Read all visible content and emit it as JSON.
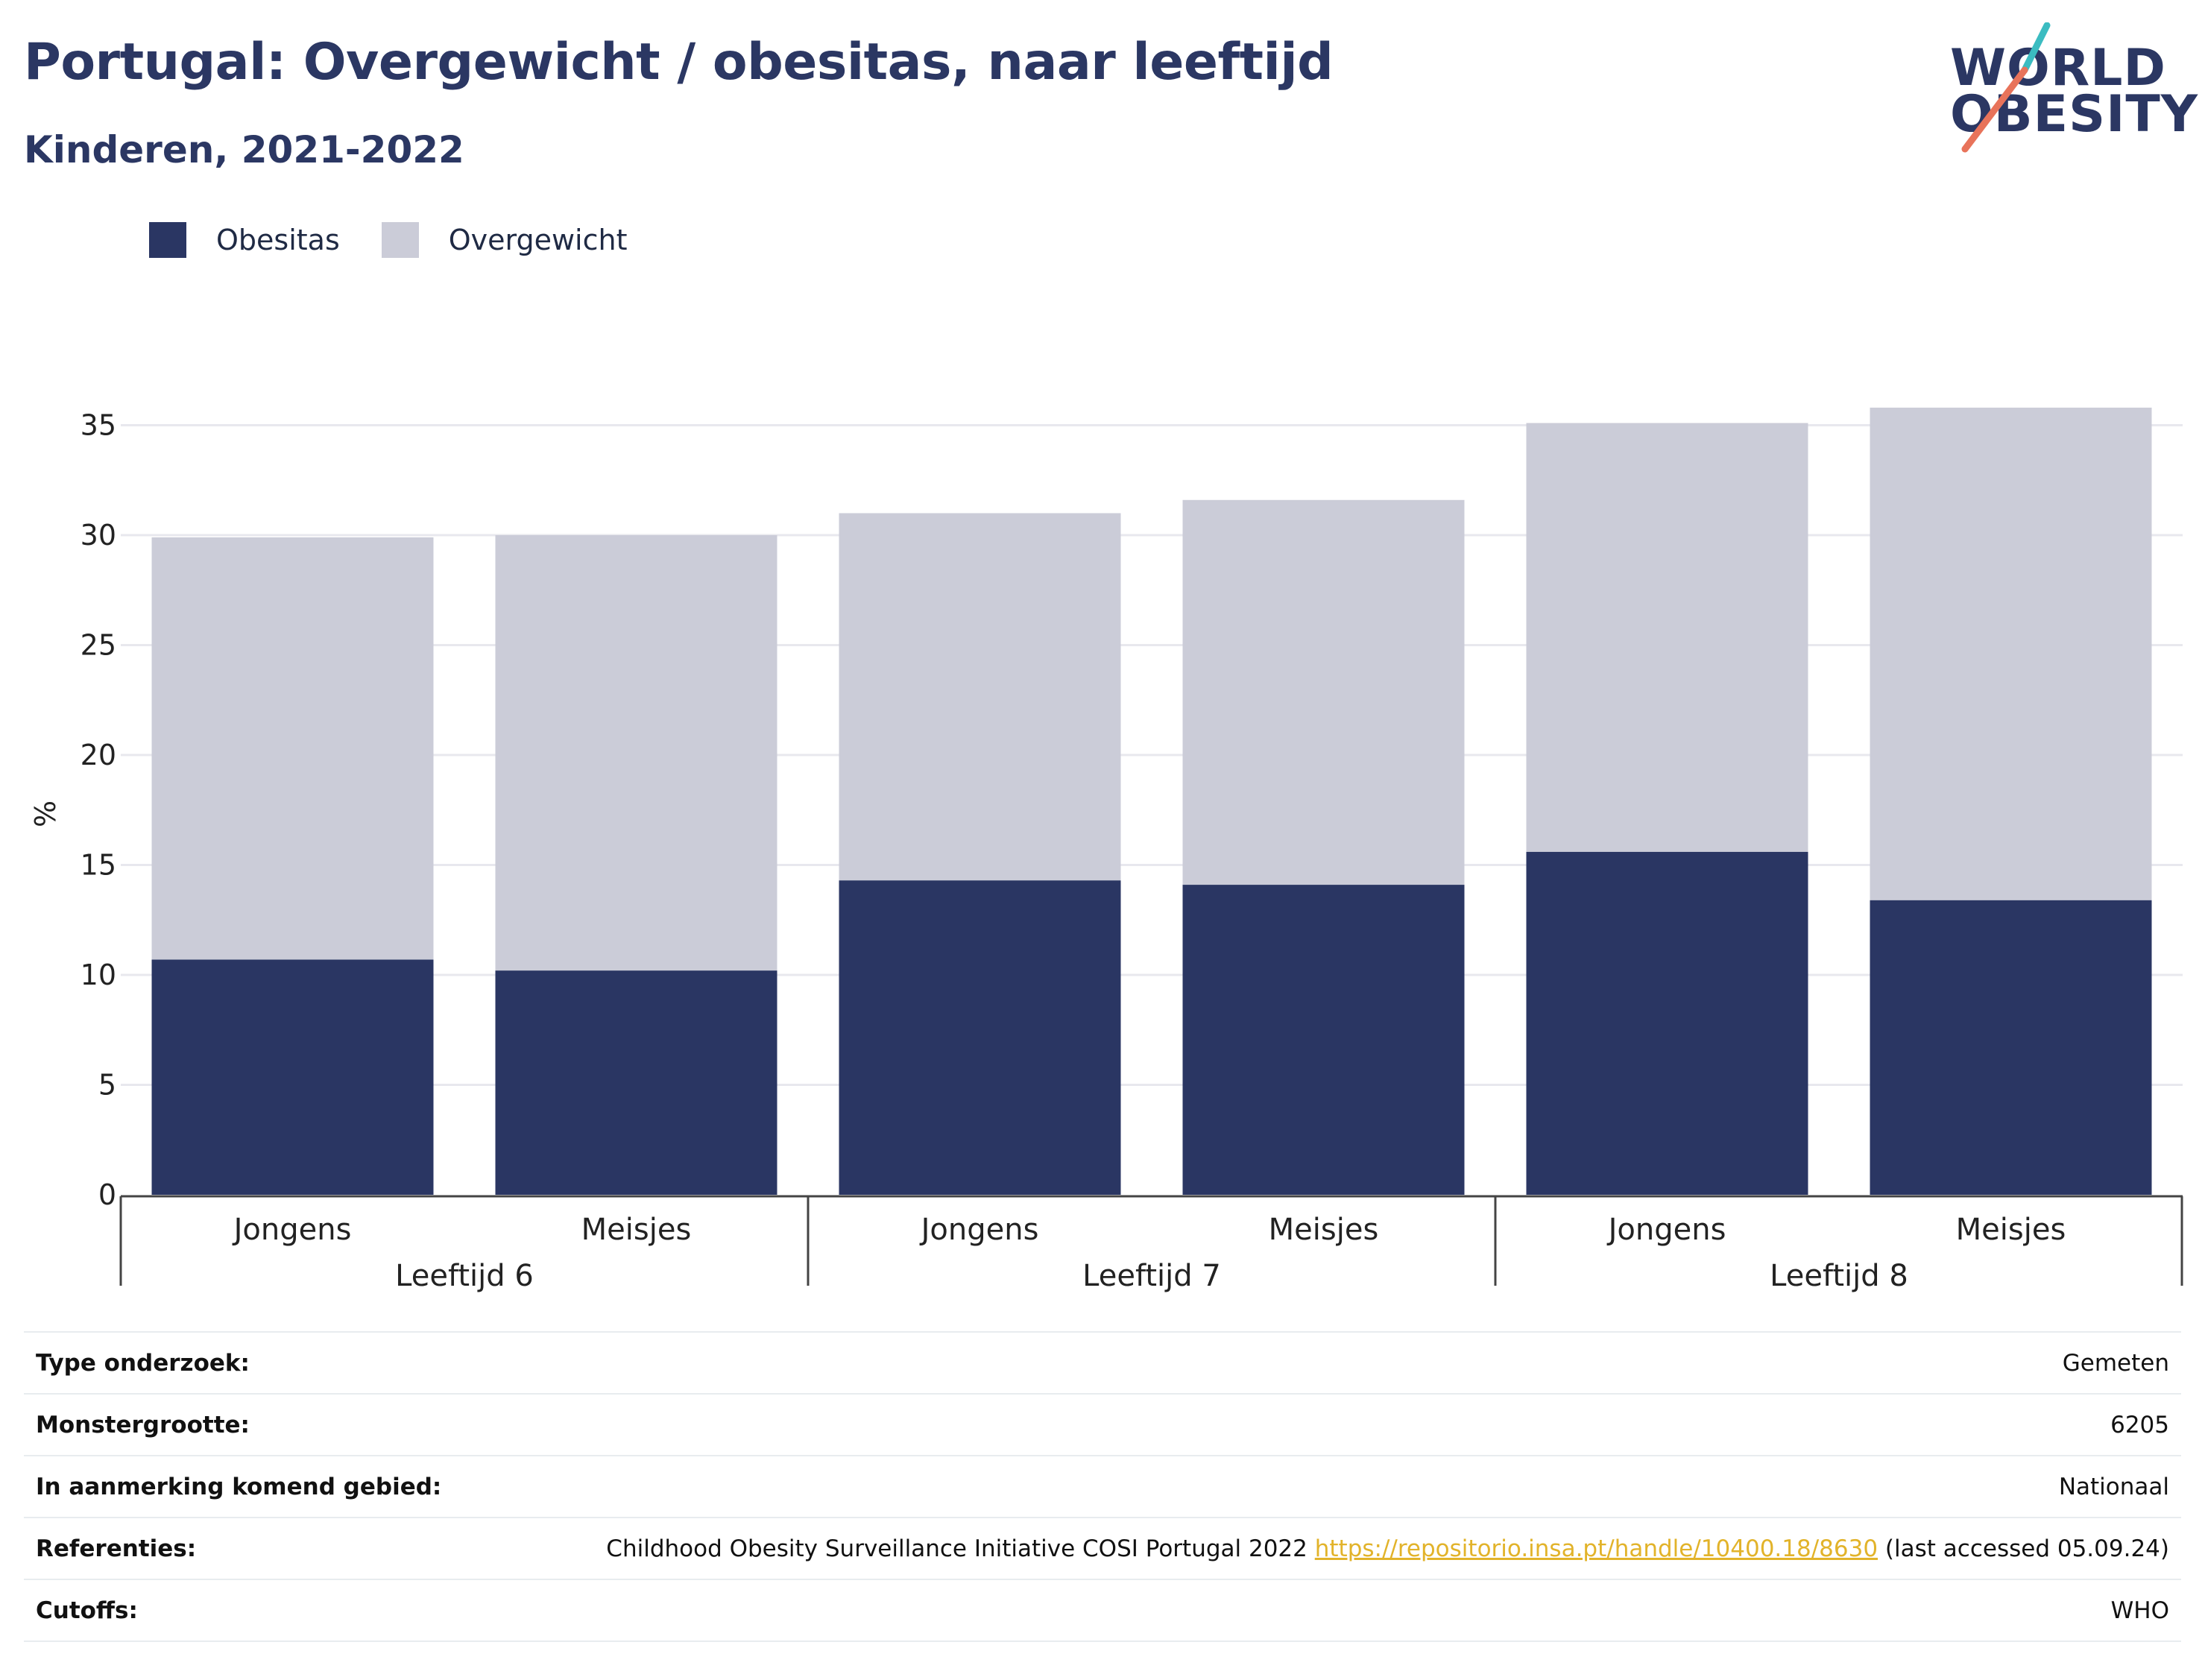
{
  "header": {
    "title": "Portugal: Overgewicht / obesitas, naar leeftijd",
    "subtitle": "Kinderen, 2021-2022"
  },
  "logo": {
    "line1": "WORLD",
    "line2": "OBESITY",
    "colors": {
      "text": "#2b3763",
      "slash_top": "#3bbcc1",
      "slash_bottom": "#e8735a"
    }
  },
  "colors": {
    "obesitas": "#2a3663",
    "overgewicht": "#cbccd8",
    "grid": "#e8e8ee",
    "axis": "#444444",
    "link": "#e2b32a"
  },
  "chart_data": {
    "type": "bar",
    "stacked": true,
    "ylabel": "%",
    "ylim": [
      0,
      36
    ],
    "yticks": [
      0,
      5,
      10,
      15,
      20,
      25,
      30,
      35
    ],
    "grid": true,
    "legend_position": "top-left",
    "categories": [
      "Jongens",
      "Meisjes",
      "Jongens",
      "Meisjes",
      "Jongens",
      "Meisjes"
    ],
    "groups": [
      {
        "label": "Leeftijd 6",
        "span": 2
      },
      {
        "label": "Leeftijd 7",
        "span": 2
      },
      {
        "label": "Leeftijd 8",
        "span": 2
      }
    ],
    "series": [
      {
        "name": "Obesitas",
        "values": [
          10.7,
          10.2,
          14.3,
          14.1,
          15.6,
          13.4
        ]
      },
      {
        "name": "Overgewicht",
        "values": [
          19.2,
          19.8,
          16.7,
          17.5,
          19.5,
          22.4
        ]
      }
    ]
  },
  "info": [
    {
      "label": "Type onderzoek:",
      "value": "Gemeten"
    },
    {
      "label": "Monstergrootte:",
      "value": "6205"
    },
    {
      "label": "In aanmerking komend gebied:",
      "value": "Nationaal"
    },
    {
      "label": "Referenties:",
      "value": "Childhood Obesity Surveillance Initiative COSI Portugal 2022",
      "link": "https://repositorio.insa.pt/handle/10400.18/8630",
      "suffix": "(last accessed 05.09.24)"
    },
    {
      "label": "Cutoffs:",
      "value": "WHO"
    }
  ]
}
